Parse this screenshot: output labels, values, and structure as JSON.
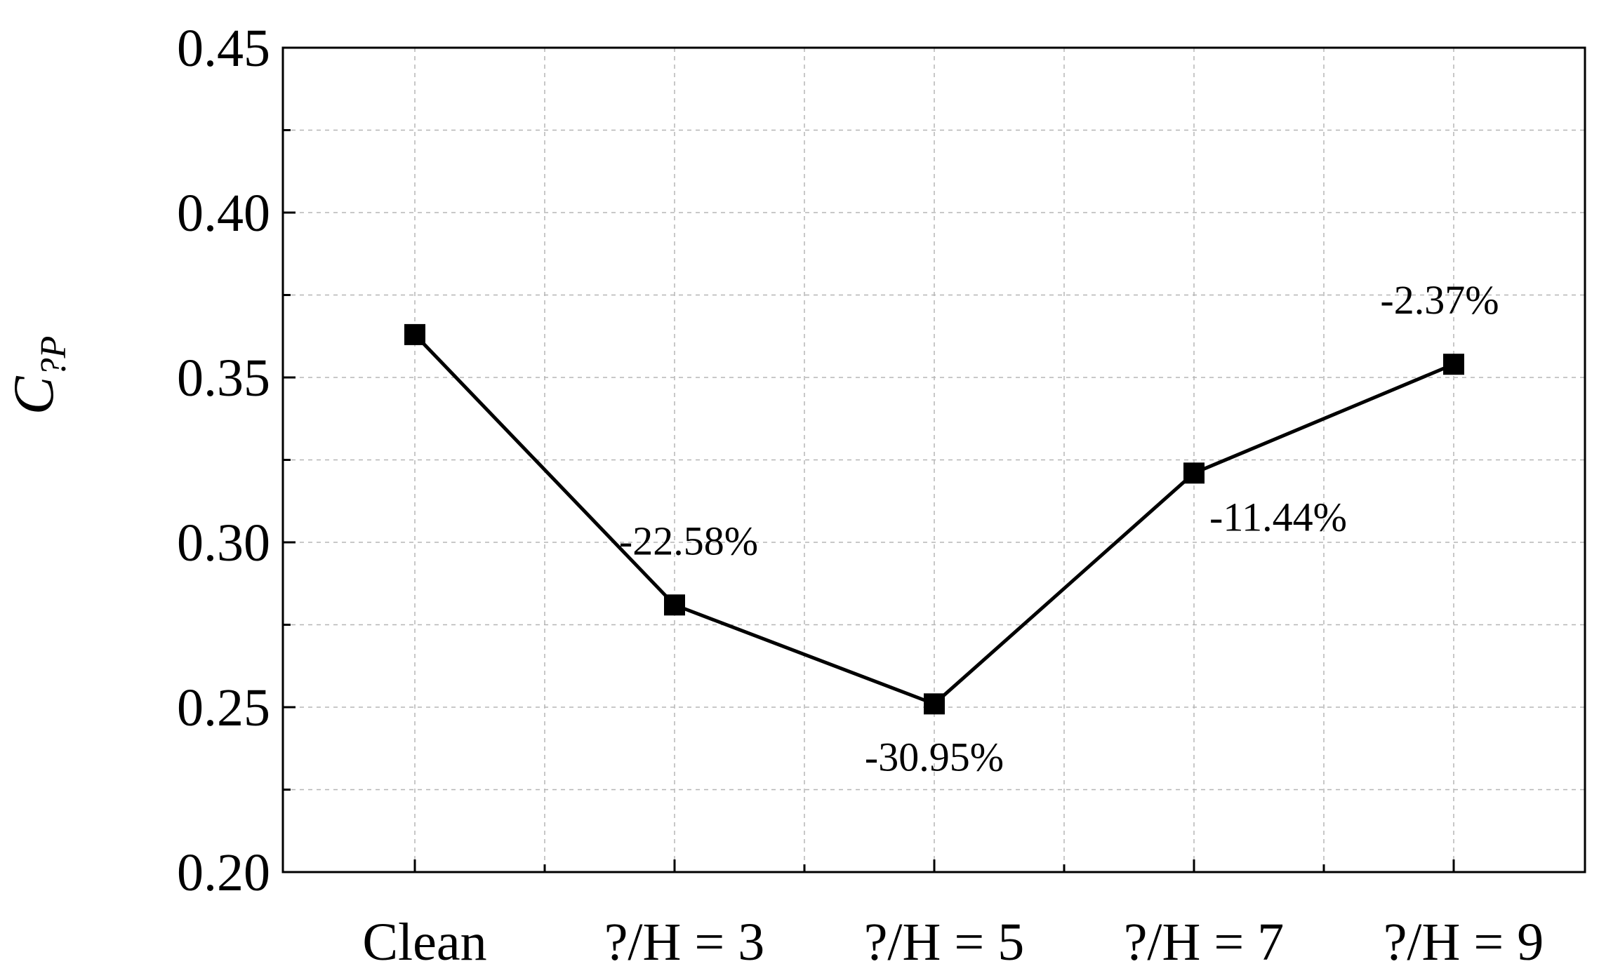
{
  "chart_data": {
    "type": "line",
    "categories": [
      "Clean",
      "?/H = 3",
      "?/H = 5",
      "?/H = 7",
      "?/H = 9"
    ],
    "series": [
      {
        "values": [
          0.363,
          0.281,
          0.251,
          0.321,
          0.354
        ]
      }
    ],
    "annotations": [
      "",
      "-22.58%",
      "-30.95%",
      "-11.44%",
      "-2.37%"
    ],
    "ylabel_main": "C",
    "ylabel_sub": "?P",
    "ylim": [
      0.2,
      0.45
    ],
    "yticks": [
      "0.20",
      "0.25",
      "0.30",
      "0.35",
      "0.40",
      "0.45"
    ],
    "grid": true,
    "marker": "square",
    "line_color": "#000000",
    "grid_color": "#b5b5b5"
  }
}
